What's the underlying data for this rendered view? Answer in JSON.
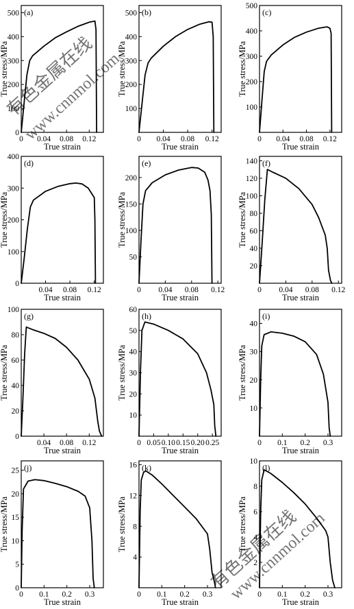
{
  "watermarks": [
    "有色金属在线",
    "www.cnnmol.com"
  ],
  "chart_data": [
    {
      "type": "line",
      "panel_label": "(a)",
      "xlabel": "True strain",
      "ylabel": "True stress/MPa",
      "xlim": [
        0,
        0.145
      ],
      "ylim": [
        0,
        530
      ],
      "xticks": [
        {
          "v": 0,
          "label": "0"
        },
        {
          "v": 0.04,
          "label": "0.04"
        },
        {
          "v": 0.08,
          "label": "0.08"
        },
        {
          "v": 0.12,
          "label": "0.12"
        }
      ],
      "yticks": [
        {
          "v": 0,
          "label": "0"
        },
        {
          "v": 100,
          "label": "100"
        },
        {
          "v": 200,
          "label": "200"
        },
        {
          "v": 300,
          "label": "300"
        },
        {
          "v": 400,
          "label": "400"
        },
        {
          "v": 500,
          "label": "500"
        }
      ],
      "x": [
        0,
        0.005,
        0.01,
        0.015,
        0.02,
        0.04,
        0.06,
        0.08,
        0.1,
        0.12,
        0.13,
        0.132,
        0.133
      ],
      "y": [
        0,
        120,
        240,
        300,
        320,
        360,
        395,
        420,
        443,
        460,
        465,
        430,
        0
      ]
    },
    {
      "type": "line",
      "panel_label": "(b)",
      "xlabel": "True strain",
      "ylabel": "True stress/MPa",
      "xlim": [
        0,
        0.135
      ],
      "ylim": [
        0,
        530
      ],
      "xticks": [
        {
          "v": 0,
          "label": "0"
        },
        {
          "v": 0.04,
          "label": "0.04"
        },
        {
          "v": 0.08,
          "label": "0.08"
        },
        {
          "v": 0.12,
          "label": "0.12"
        }
      ],
      "yticks": [
        {
          "v": 100,
          "label": "100"
        },
        {
          "v": 200,
          "label": "200"
        },
        {
          "v": 300,
          "label": "300"
        },
        {
          "v": 400,
          "label": "400"
        },
        {
          "v": 500,
          "label": "500"
        }
      ],
      "x": [
        0,
        0.005,
        0.01,
        0.015,
        0.02,
        0.04,
        0.06,
        0.08,
        0.1,
        0.115,
        0.12,
        0.122,
        0.123
      ],
      "y": [
        0,
        120,
        240,
        290,
        310,
        360,
        400,
        430,
        452,
        462,
        460,
        400,
        0
      ]
    },
    {
      "type": "line",
      "panel_label": "(c)",
      "xlabel": "True strain",
      "ylabel": "True stress/MPa",
      "xlim": [
        0,
        0.14
      ],
      "ylim": [
        0,
        500
      ],
      "xticks": [
        {
          "v": 0,
          "label": "0"
        },
        {
          "v": 0.04,
          "label": "0.04"
        },
        {
          "v": 0.08,
          "label": "0.08"
        },
        {
          "v": 0.12,
          "label": "0.12"
        }
      ],
      "yticks": [
        {
          "v": 100,
          "label": "100"
        },
        {
          "v": 200,
          "label": "200"
        },
        {
          "v": 300,
          "label": "300"
        },
        {
          "v": 400,
          "label": "400"
        },
        {
          "v": 500,
          "label": "500"
        }
      ],
      "x": [
        0,
        0.004,
        0.008,
        0.012,
        0.02,
        0.04,
        0.06,
        0.08,
        0.1,
        0.115,
        0.12,
        0.122,
        0.123
      ],
      "y": [
        0,
        120,
        240,
        280,
        305,
        345,
        375,
        395,
        410,
        416,
        410,
        390,
        0
      ]
    },
    {
      "type": "line",
      "panel_label": "(d)",
      "xlabel": "True strain",
      "ylabel": "True stress/MPa",
      "xlim": [
        0,
        0.135
      ],
      "ylim": [
        0,
        400
      ],
      "xticks": [
        {
          "v": 0.04,
          "label": "0.04"
        },
        {
          "v": 0.08,
          "label": "0.08"
        },
        {
          "v": 0.12,
          "label": "0.12"
        }
      ],
      "yticks": [
        {
          "v": 0,
          "label": "0"
        },
        {
          "v": 100,
          "label": "100"
        },
        {
          "v": 200,
          "label": "200"
        },
        {
          "v": 300,
          "label": "300"
        },
        {
          "v": 400,
          "label": "400"
        }
      ],
      "x": [
        0,
        0.005,
        0.01,
        0.015,
        0.02,
        0.04,
        0.06,
        0.08,
        0.09,
        0.1,
        0.11,
        0.12,
        0.121,
        0.122
      ],
      "y": [
        0,
        80,
        170,
        240,
        262,
        290,
        305,
        314,
        316,
        313,
        300,
        270,
        200,
        0
      ]
    },
    {
      "type": "line",
      "panel_label": "(e)",
      "xlabel": "True strain",
      "ylabel": "True stress/MPa",
      "xlim": [
        0,
        0.125
      ],
      "ylim": [
        0,
        240
      ],
      "xticks": [
        {
          "v": 0,
          "label": "0"
        },
        {
          "v": 0.04,
          "label": "0.04"
        },
        {
          "v": 0.08,
          "label": "0.08"
        },
        {
          "v": 0.12,
          "label": "0.12"
        }
      ],
      "yticks": [
        {
          "v": 50,
          "label": "50"
        },
        {
          "v": 100,
          "label": "100"
        },
        {
          "v": 150,
          "label": "150"
        },
        {
          "v": 200,
          "label": "200"
        }
      ],
      "x": [
        0,
        0.003,
        0.006,
        0.01,
        0.02,
        0.04,
        0.06,
        0.08,
        0.09,
        0.1,
        0.105,
        0.108,
        0.11,
        0.111
      ],
      "y": [
        0,
        80,
        150,
        175,
        190,
        205,
        214,
        219,
        218,
        210,
        195,
        175,
        130,
        0
      ]
    },
    {
      "type": "line",
      "panel_label": "(f)",
      "xlabel": "True strain",
      "ylabel": "True stress/MPa",
      "xlim": [
        0,
        0.125
      ],
      "ylim": [
        0,
        145
      ],
      "xticks": [
        {
          "v": 0,
          "label": "0"
        },
        {
          "v": 0.04,
          "label": "0.04"
        },
        {
          "v": 0.08,
          "label": "0.08"
        },
        {
          "v": 0.12,
          "label": "0.12"
        }
      ],
      "yticks": [
        {
          "v": 20,
          "label": "20"
        },
        {
          "v": 40,
          "label": "40"
        },
        {
          "v": 60,
          "label": "60"
        },
        {
          "v": 80,
          "label": "80"
        },
        {
          "v": 100,
          "label": "100"
        },
        {
          "v": 120,
          "label": "120"
        },
        {
          "v": 140,
          "label": "140"
        }
      ],
      "x": [
        0,
        0.004,
        0.008,
        0.012,
        0.02,
        0.04,
        0.06,
        0.08,
        0.09,
        0.1,
        0.103,
        0.105,
        0.108,
        0.11
      ],
      "y": [
        0,
        45,
        95,
        130,
        127,
        120,
        108,
        90,
        75,
        55,
        40,
        15,
        3,
        0
      ]
    },
    {
      "type": "line",
      "panel_label": "(g)",
      "xlabel": "True strain",
      "ylabel": "True stress/MPa",
      "xlim": [
        0,
        0.145
      ],
      "ylim": [
        0,
        100
      ],
      "xticks": [
        {
          "v": 0.04,
          "label": "0.04"
        },
        {
          "v": 0.08,
          "label": "0.08"
        },
        {
          "v": 0.12,
          "label": "0.12"
        }
      ],
      "yticks": [
        {
          "v": 0,
          "label": "0"
        },
        {
          "v": 20,
          "label": "20"
        },
        {
          "v": 40,
          "label": "40"
        },
        {
          "v": 60,
          "label": "60"
        },
        {
          "v": 80,
          "label": "80"
        },
        {
          "v": 100,
          "label": "100"
        }
      ],
      "x": [
        0,
        0.003,
        0.006,
        0.009,
        0.02,
        0.04,
        0.06,
        0.08,
        0.1,
        0.12,
        0.13,
        0.135,
        0.138,
        0.142
      ],
      "y": [
        0,
        30,
        65,
        86,
        84,
        81,
        77,
        70,
        60,
        45,
        30,
        12,
        4,
        0
      ]
    },
    {
      "type": "line",
      "panel_label": "(h)",
      "xlabel": "True strain",
      "ylabel": "True stress/MPa",
      "xlim": [
        0,
        0.28
      ],
      "ylim": [
        0,
        60
      ],
      "xticks": [
        {
          "v": 0,
          "label": "0"
        },
        {
          "v": 0.05,
          "label": "0.05"
        },
        {
          "v": 0.1,
          "label": "0.10"
        },
        {
          "v": 0.15,
          "label": "0.15"
        },
        {
          "v": 0.2,
          "label": "0.20"
        },
        {
          "v": 0.25,
          "label": "0.25"
        }
      ],
      "yticks": [
        {
          "v": 10,
          "label": "10"
        },
        {
          "v": 20,
          "label": "20"
        },
        {
          "v": 30,
          "label": "30"
        },
        {
          "v": 40,
          "label": "40"
        },
        {
          "v": 50,
          "label": "50"
        },
        {
          "v": 60,
          "label": "60"
        }
      ],
      "x": [
        0,
        0.005,
        0.01,
        0.02,
        0.05,
        0.1,
        0.15,
        0.2,
        0.23,
        0.245,
        0.255,
        0.258,
        0.262
      ],
      "y": [
        0,
        30,
        50,
        54,
        53,
        50,
        46,
        39,
        30,
        22,
        15,
        5,
        0
      ]
    },
    {
      "type": "line",
      "panel_label": "(i)",
      "xlabel": "True strain",
      "ylabel": "True stress/MPa",
      "xlim": [
        0,
        0.36
      ],
      "ylim": [
        0,
        45
      ],
      "xticks": [
        {
          "v": 0,
          "label": "0"
        },
        {
          "v": 0.1,
          "label": "0.1"
        },
        {
          "v": 0.2,
          "label": "0.2"
        },
        {
          "v": 0.3,
          "label": "0.3"
        }
      ],
      "yticks": [
        {
          "v": 10,
          "label": "10"
        },
        {
          "v": 20,
          "label": "20"
        },
        {
          "v": 30,
          "label": "30"
        },
        {
          "v": 40,
          "label": "40"
        }
      ],
      "x": [
        0,
        0.005,
        0.01,
        0.02,
        0.05,
        0.1,
        0.15,
        0.2,
        0.25,
        0.28,
        0.3,
        0.305,
        0.31
      ],
      "y": [
        0,
        20,
        32,
        36,
        37,
        36.5,
        35.5,
        33.5,
        29,
        22,
        12,
        3,
        0
      ]
    },
    {
      "type": "line",
      "panel_label": "(j)",
      "xlabel": "True strain",
      "ylabel": "True stress/MPa",
      "xlim": [
        0,
        0.36
      ],
      "ylim": [
        0,
        27
      ],
      "xticks": [
        {
          "v": 0,
          "label": "0"
        },
        {
          "v": 0.1,
          "label": "0.1"
        },
        {
          "v": 0.2,
          "label": "0.2"
        },
        {
          "v": 0.3,
          "label": "0.3"
        }
      ],
      "yticks": [
        {
          "v": 0,
          "label": "0"
        },
        {
          "v": 5,
          "label": "5"
        },
        {
          "v": 10,
          "label": "10"
        },
        {
          "v": 15,
          "label": "15"
        },
        {
          "v": 20,
          "label": "20"
        },
        {
          "v": 25,
          "label": "25"
        }
      ],
      "x": [
        0,
        0.004,
        0.01,
        0.03,
        0.06,
        0.1,
        0.15,
        0.2,
        0.25,
        0.28,
        0.3,
        0.31,
        0.315,
        0.32
      ],
      "y": [
        0,
        12,
        21,
        22.7,
        23,
        22.8,
        22.2,
        21.5,
        20.5,
        19.5,
        17,
        10,
        2,
        0
      ]
    },
    {
      "type": "line",
      "panel_label": "(k)",
      "xlabel": "True strain",
      "ylabel": "True stress/MPa",
      "xlim": [
        0,
        0.36
      ],
      "ylim": [
        0,
        16.5
      ],
      "xticks": [
        {
          "v": 0,
          "label": "0"
        },
        {
          "v": 0.1,
          "label": "0.1"
        },
        {
          "v": 0.2,
          "label": "0.2"
        },
        {
          "v": 0.3,
          "label": "0.3"
        }
      ],
      "yticks": [
        {
          "v": 4,
          "label": "4"
        },
        {
          "v": 8,
          "label": "8"
        },
        {
          "v": 12,
          "label": "12"
        },
        {
          "v": 16,
          "label": "16"
        }
      ],
      "x": [
        0,
        0.005,
        0.01,
        0.02,
        0.03,
        0.06,
        0.1,
        0.15,
        0.2,
        0.25,
        0.3,
        0.31,
        0.32,
        0.33,
        0.335
      ],
      "y": [
        0,
        10,
        14,
        15,
        15.2,
        14.6,
        13.5,
        12,
        10.5,
        9,
        7,
        5,
        2,
        0.8,
        0
      ]
    },
    {
      "type": "line",
      "panel_label": "(l)",
      "xlabel": "True strain",
      "ylabel": "True stress/MPa",
      "xlim": [
        0,
        0.36
      ],
      "ylim": [
        0,
        10
      ],
      "xticks": [
        {
          "v": 0,
          "label": "0"
        },
        {
          "v": 0.1,
          "label": "0.1"
        },
        {
          "v": 0.2,
          "label": "0.2"
        },
        {
          "v": 0.3,
          "label": "0.3"
        }
      ],
      "yticks": [
        {
          "v": 2,
          "label": "2"
        },
        {
          "v": 4,
          "label": "4"
        },
        {
          "v": 6,
          "label": "6"
        },
        {
          "v": 8,
          "label": "8"
        },
        {
          "v": 10,
          "label": "10"
        }
      ],
      "x": [
        0,
        0.005,
        0.01,
        0.02,
        0.05,
        0.1,
        0.15,
        0.2,
        0.25,
        0.29,
        0.3,
        0.31,
        0.32,
        0.33
      ],
      "y": [
        0,
        6,
        8.5,
        9.3,
        9,
        8.3,
        7.5,
        6.6,
        5.5,
        4.5,
        4,
        2,
        0.6,
        0
      ]
    }
  ]
}
